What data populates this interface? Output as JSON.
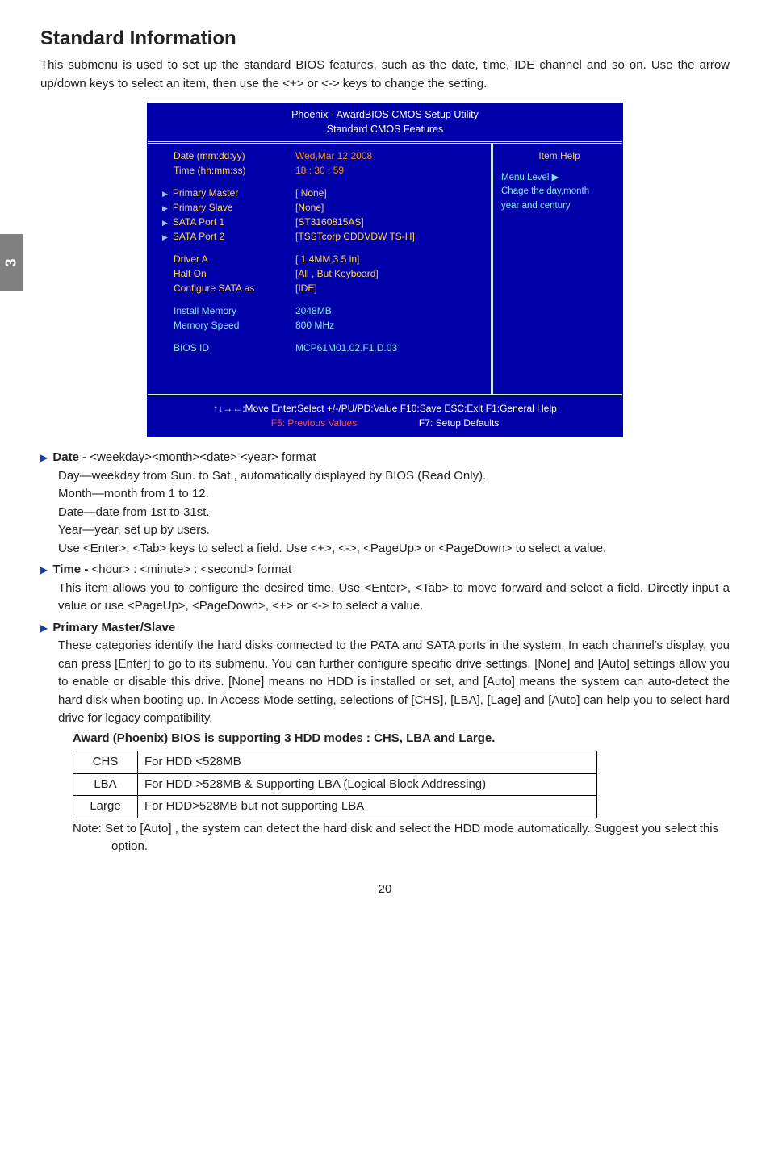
{
  "sideTab": "3",
  "heading": "Standard Information",
  "intro": "This submenu is used to set up the standard BIOS features, such as the date, time, IDE channel and so on. Use the arrow up/down keys to select an item, then use the <+> or <-> keys to change the setting.",
  "bios": {
    "titleLine1": "Phoenix - AwardBIOS CMOS Setup Utility",
    "titleLine2": "Standard CMOS Features",
    "rows": [
      {
        "label": "Date (mm:dd:yy)",
        "val": "Wed,Mar 12 2008",
        "labelClass": "yellow",
        "valClass": "orange",
        "triangle": false
      },
      {
        "label": "Time (hh:mm:ss)",
        "val": "18 : 30 : 59",
        "labelClass": "yellow",
        "valClass": "orange",
        "triangle": false
      }
    ],
    "rows2": [
      {
        "label": "Primary Master",
        "val": "[ None]",
        "labelClass": "yellow",
        "valClass": "yellow",
        "triangle": true
      },
      {
        "label": "Primary Slave",
        "val": "[None]",
        "labelClass": "yellow",
        "valClass": "yellow",
        "triangle": true
      },
      {
        "label": "SATA Port 1",
        "val": "[ST3160815AS]",
        "labelClass": "yellow",
        "valClass": "yellow",
        "triangle": true
      },
      {
        "label": "SATA Port 2",
        "val": "[TSSTcorp CDDVDW TS-H]",
        "labelClass": "yellow",
        "valClass": "yellow",
        "triangle": true
      }
    ],
    "rows3": [
      {
        "label": "Driver A",
        "val": "[ 1.4MM,3.5 in]",
        "labelClass": "yellow",
        "valClass": "yellow",
        "triangle": false
      },
      {
        "label": "Halt On",
        "val": "[All , But Keyboard]",
        "labelClass": "yellow",
        "valClass": "yellow",
        "triangle": false
      },
      {
        "label": "Configure SATA as",
        "val": "[IDE]",
        "labelClass": "yellow",
        "valClass": "yellow",
        "triangle": false
      }
    ],
    "rows4": [
      {
        "label": "Install   Memory",
        "val": "2048MB",
        "labelClass": "cyan",
        "valClass": "cyan",
        "triangle": false
      },
      {
        "label": "Memory Speed",
        "val": "800 MHz",
        "labelClass": "cyan",
        "valClass": "cyan",
        "triangle": false
      }
    ],
    "rows5": [
      {
        "label": "BIOS   ID",
        "val": "MCP61M01.02.F1.D.03",
        "labelClass": "cyan",
        "valClass": "cyan",
        "triangle": false
      }
    ],
    "help": {
      "title": "Item Help",
      "menuLevel": "Menu Level  ▶",
      "line1": "Chage the day,month",
      "line2": "year and century"
    },
    "footerLine1a": "↑↓→←:Move   Enter:Select    +/-/PU/PD:Value   F10:Save      ESC:Exit   F1:General Help",
    "footerF5": "F5: Previous Values",
    "footerF7": "F7: Setup Defaults"
  },
  "sections": [
    {
      "head": "Date -",
      "after": " <weekday><month><date> <year> format",
      "body": [
        "Day—weekday from Sun. to Sat., automatically displayed by BIOS (Read Only).",
        "Month—month from 1 to 12.",
        "Date—date from 1st to 31st.",
        "Year—year, set up by users.",
        "Use <Enter>, <Tab> keys to select a field. Use <+>, <->, <PageUp> or <PageDown> to select a value."
      ]
    },
    {
      "head": "Time -",
      "after": " <hour> : <minute> : <second> format",
      "body": [
        "This item allows you to configure the desired time. Use <Enter>, <Tab> to move forward and select a field. Directly input a value or use <PageUp>, <PageDown>, <+> or <-> to select a value."
      ]
    },
    {
      "head": "Primary Master/Slave",
      "after": "",
      "body": [
        "These categories identify the hard disks connected to the PATA and SATA ports in the system. In each channel's display, you can press [Enter] to go to its submenu. You can further configure specific drive settings. [None] and [Auto] settings allow you to enable or disable this drive. [None] means no HDD is installed or set, and [Auto] means the system can auto-detect the hard disk when booting up. In Access Mode setting, selections of [CHS], [LBA], [Lage] and [Auto] can help you to select hard drive for legacy compatibility."
      ]
    }
  ],
  "awardLine": "Award (Phoenix) BIOS is supporting 3 HDD modes : CHS, LBA and Large.",
  "hddTable": [
    {
      "mode": "CHS",
      "desc": "For HDD <528MB"
    },
    {
      "mode": "LBA",
      "desc": "For HDD >528MB & Supporting LBA (Logical Block Addressing)"
    },
    {
      "mode": "Large",
      "desc": "For HDD>528MB but not supporting LBA"
    }
  ],
  "note": "Note: Set to [Auto] , the system can detect the hard disk and select the HDD mode automatically. Suggest you select this option.",
  "pageNum": "20"
}
